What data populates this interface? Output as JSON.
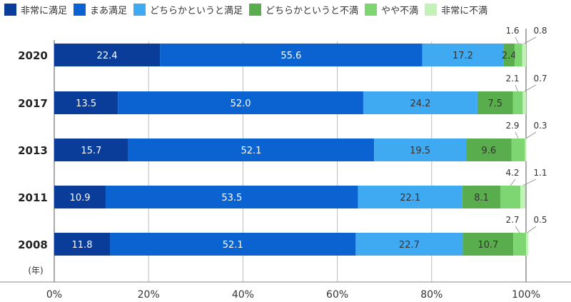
{
  "chart_data": {
    "type": "bar",
    "orientation": "horizontal",
    "stacked": true,
    "categories": [
      "2020",
      "2017",
      "2013",
      "2011",
      "2008"
    ],
    "series": [
      {
        "name": "非常に満足",
        "color": "#0a3d9a",
        "values": [
          22.4,
          13.5,
          15.7,
          10.9,
          11.8
        ]
      },
      {
        "name": "まあ満足",
        "color": "#0a63d1",
        "values": [
          55.6,
          52.0,
          52.1,
          53.5,
          52.1
        ]
      },
      {
        "name": "どちらかというと満足",
        "color": "#3faaf2",
        "values": [
          17.2,
          24.2,
          19.5,
          22.1,
          22.7
        ]
      },
      {
        "name": "どちらかというと不満",
        "color": "#5aad4c",
        "values": [
          2.4,
          7.5,
          9.6,
          8.1,
          10.7
        ]
      },
      {
        "name": "やや不満",
        "color": "#7ed672",
        "values": [
          1.6,
          2.1,
          2.9,
          4.2,
          2.7
        ]
      },
      {
        "name": "非常に不満",
        "color": "#c3f2b8",
        "values": [
          0.8,
          0.7,
          0.3,
          1.1,
          0.5
        ]
      }
    ],
    "value_labels": [
      [
        "22.4",
        "55.6",
        "17.2",
        "2.4",
        "1.6",
        "0.8"
      ],
      [
        "13.5",
        "52.0",
        "24.2",
        "7.5",
        "2.1",
        "0.7"
      ],
      [
        "15.7",
        "52.1",
        "19.5",
        "9.6",
        "2.9",
        "0.3"
      ],
      [
        "10.9",
        "53.5",
        "22.1",
        "8.1",
        "4.2",
        "1.1"
      ],
      [
        "11.8",
        "52.1",
        "22.7",
        "10.7",
        "2.7",
        "0.5"
      ]
    ],
    "category_axis_unit": "(年)",
    "x_ticks": [
      "0%",
      "20%",
      "40%",
      "60%",
      "80%",
      "100%"
    ],
    "xlim": [
      0,
      100
    ],
    "grid": true,
    "legend_position": "top"
  }
}
